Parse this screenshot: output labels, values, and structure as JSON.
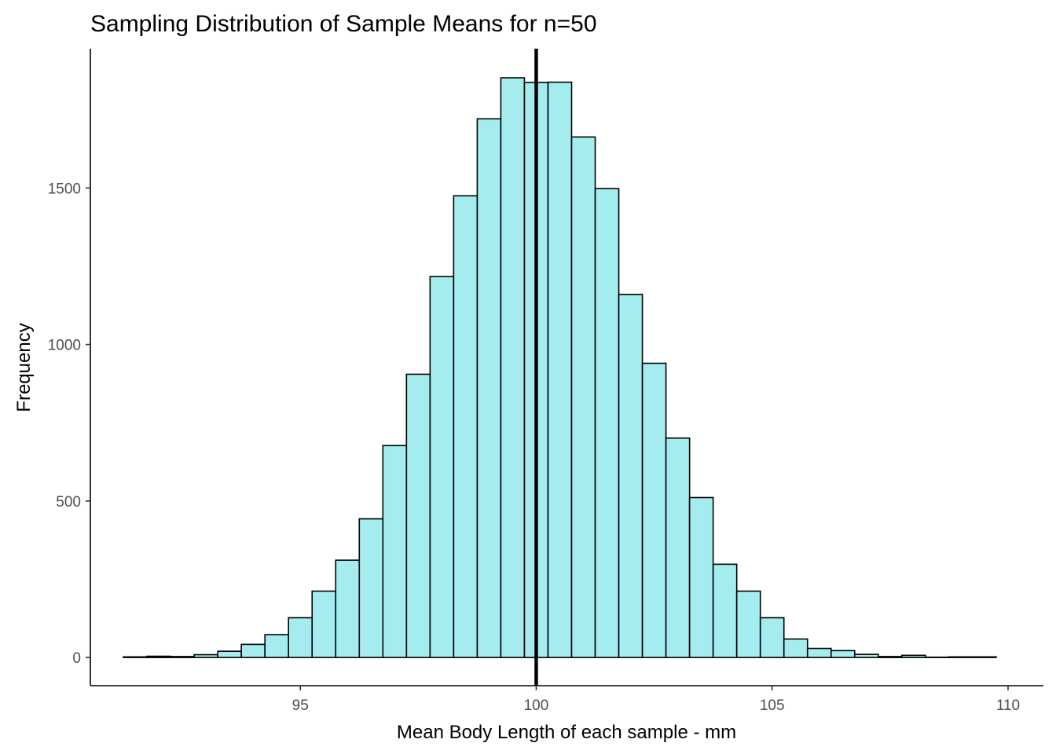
{
  "chart_data": {
    "type": "bar",
    "title": "Sampling Distribution of Sample Means for n=50",
    "xlabel": "Mean Body Length of each sample - mm",
    "ylabel": "Frequency",
    "xlim": [
      90.55,
      110.75
    ],
    "ylim": [
      -90,
      1945
    ],
    "x_ticks": [
      95,
      100,
      105,
      110
    ],
    "y_ticks": [
      0,
      500,
      1000,
      1500
    ],
    "bin_width": 0.5,
    "bins": [
      {
        "center": 91.5,
        "value": 2
      },
      {
        "center": 92.0,
        "value": 4
      },
      {
        "center": 92.5,
        "value": 3
      },
      {
        "center": 93.0,
        "value": 9
      },
      {
        "center": 93.5,
        "value": 20
      },
      {
        "center": 94.0,
        "value": 42
      },
      {
        "center": 94.5,
        "value": 73
      },
      {
        "center": 95.0,
        "value": 127
      },
      {
        "center": 95.5,
        "value": 212
      },
      {
        "center": 96.0,
        "value": 311
      },
      {
        "center": 96.5,
        "value": 443
      },
      {
        "center": 97.0,
        "value": 677
      },
      {
        "center": 97.5,
        "value": 905
      },
      {
        "center": 98.0,
        "value": 1217
      },
      {
        "center": 98.5,
        "value": 1475
      },
      {
        "center": 99.0,
        "value": 1721
      },
      {
        "center": 99.5,
        "value": 1852
      },
      {
        "center": 100.0,
        "value": 1837
      },
      {
        "center": 100.5,
        "value": 1838
      },
      {
        "center": 101.0,
        "value": 1663
      },
      {
        "center": 101.5,
        "value": 1498
      },
      {
        "center": 102.0,
        "value": 1160
      },
      {
        "center": 102.5,
        "value": 940
      },
      {
        "center": 103.0,
        "value": 701
      },
      {
        "center": 103.5,
        "value": 511
      },
      {
        "center": 104.0,
        "value": 298
      },
      {
        "center": 104.5,
        "value": 212
      },
      {
        "center": 105.0,
        "value": 127
      },
      {
        "center": 105.5,
        "value": 59
      },
      {
        "center": 106.0,
        "value": 29
      },
      {
        "center": 106.5,
        "value": 22
      },
      {
        "center": 107.0,
        "value": 10
      },
      {
        "center": 107.5,
        "value": 3
      },
      {
        "center": 108.0,
        "value": 7
      },
      {
        "center": 108.5,
        "value": 1
      },
      {
        "center": 109.0,
        "value": 2
      },
      {
        "center": 109.5,
        "value": 2
      }
    ],
    "reference_line": {
      "x": 100
    },
    "colors": {
      "bar_fill": "#a4ecee",
      "bar_stroke": "#000000",
      "reference_line": "#000000"
    },
    "grid": false
  }
}
